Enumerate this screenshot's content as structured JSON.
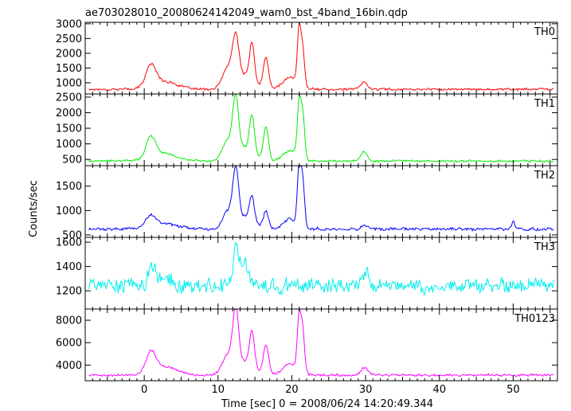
{
  "chart_data": {
    "type": "line",
    "title": "ae703028010_20080624142049_wam0_bst_4band_16bin.qdp",
    "xlabel": "Time [sec] 0 = 2008/06/24 14:20:49.344",
    "ylabel": "Counts/sec",
    "xlim": [
      -8.0,
      56.0
    ],
    "x_ticks": [
      0,
      10,
      20,
      30,
      40,
      50
    ],
    "grid": false,
    "panels": [
      {
        "name": "TH0",
        "color": "#ff0000",
        "ylim": [
          620,
          3050
        ],
        "y_ticks": [
          1000,
          1500,
          2000,
          2500,
          3000
        ],
        "baseline": 780,
        "noise": 45,
        "pulses": [
          [
            0.9,
            700,
            0.9
          ],
          [
            2.5,
            280,
            2.5
          ],
          [
            12.4,
            1500,
            0.6
          ],
          [
            11.3,
            700,
            1.0
          ],
          [
            14.6,
            1200,
            0.45
          ],
          [
            16.5,
            1050,
            0.5
          ],
          [
            13.8,
            500,
            1.6
          ],
          [
            21.0,
            1900,
            0.35
          ],
          [
            21.5,
            1200,
            0.35
          ],
          [
            19.8,
            400,
            1.4
          ],
          [
            29.8,
            250,
            0.6
          ]
        ]
      },
      {
        "name": "TH1",
        "color": "#00ee00",
        "ylim": [
          300,
          2600
        ],
        "y_ticks": [
          500,
          1000,
          1500,
          2000,
          2500
        ],
        "baseline": 450,
        "noise": 40,
        "pulses": [
          [
            0.9,
            650,
            0.9
          ],
          [
            2.5,
            250,
            2.5
          ],
          [
            12.4,
            1750,
            0.55
          ],
          [
            11.3,
            650,
            1.0
          ],
          [
            14.6,
            1150,
            0.45
          ],
          [
            16.5,
            1050,
            0.5
          ],
          [
            13.8,
            450,
            1.6
          ],
          [
            21.0,
            1750,
            0.35
          ],
          [
            21.5,
            1350,
            0.35
          ],
          [
            19.8,
            350,
            1.4
          ],
          [
            29.8,
            300,
            0.6
          ]
        ]
      },
      {
        "name": "TH2",
        "color": "#0000ff",
        "ylim": [
          450,
          1920
        ],
        "y_ticks": [
          500,
          1000,
          1500
        ],
        "baseline": 620,
        "noise": 35,
        "pulses": [
          [
            0.9,
            220,
            0.9
          ],
          [
            2.5,
            120,
            2.5
          ],
          [
            12.4,
            1100,
            0.55
          ],
          [
            11.3,
            350,
            1.0
          ],
          [
            14.6,
            500,
            0.45
          ],
          [
            16.5,
            350,
            0.5
          ],
          [
            13.8,
            250,
            1.6
          ],
          [
            21.0,
            1200,
            0.35
          ],
          [
            21.5,
            900,
            0.35
          ],
          [
            19.8,
            200,
            1.4
          ],
          [
            29.8,
            80,
            0.6
          ],
          [
            50.0,
            150,
            0.3
          ]
        ]
      },
      {
        "name": "TH3",
        "color": "#00eeee",
        "ylim": [
          1050,
          1640
        ],
        "y_ticks": [
          1200,
          1400,
          1600
        ],
        "baseline": 1240,
        "noise": 70,
        "pulses": [
          [
            1.0,
            150,
            0.6
          ],
          [
            12.4,
            300,
            0.5
          ],
          [
            13.5,
            200,
            0.8
          ],
          [
            30.0,
            120,
            0.5
          ],
          [
            2.5,
            80,
            1.2
          ]
        ]
      },
      {
        "name": "TH0123",
        "color": "#ff00ff",
        "ylim": [
          2600,
          9000
        ],
        "y_ticks": [
          4000,
          6000,
          8000
        ],
        "baseline": 3100,
        "noise": 120,
        "pulses": [
          [
            0.9,
            1700,
            0.9
          ],
          [
            2.5,
            800,
            2.5
          ],
          [
            12.4,
            5200,
            0.55
          ],
          [
            11.3,
            1800,
            1.0
          ],
          [
            14.6,
            3000,
            0.45
          ],
          [
            16.5,
            2700,
            0.5
          ],
          [
            13.8,
            1300,
            1.6
          ],
          [
            21.0,
            5000,
            0.35
          ],
          [
            21.5,
            3500,
            0.35
          ],
          [
            19.8,
            1000,
            1.4
          ],
          [
            29.8,
            700,
            0.6
          ]
        ]
      }
    ]
  }
}
